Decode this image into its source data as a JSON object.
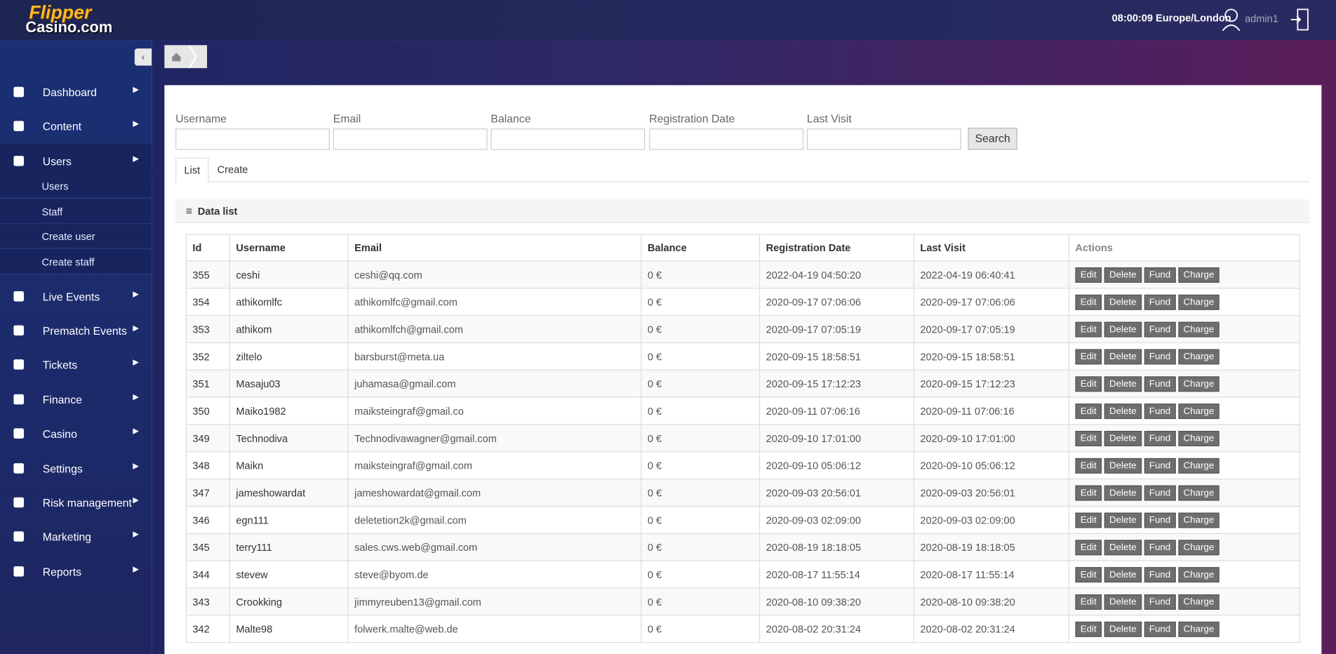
{
  "header": {
    "logo_top": "Flipper",
    "logo_bottom": "Casino.com",
    "time": "08:00:09 Europe/London",
    "user": "admin1"
  },
  "sidebar": {
    "menu": [
      "Dashboard",
      "Content",
      "Users",
      "Live Events",
      "Prematch Events",
      "Tickets",
      "Finance",
      "Casino",
      "Settings",
      "Risk management",
      "Marketing",
      "Reports"
    ],
    "submenu": [
      "Users",
      "Staff",
      "Create user",
      "Create staff"
    ]
  },
  "filters": {
    "labels": [
      "Username",
      "Email",
      "Balance",
      "Registration Date",
      "Last Visit"
    ],
    "button": "Search"
  },
  "tabs": [
    "List",
    "Create"
  ],
  "panel_title": "Data list",
  "table": {
    "columns": [
      "Id",
      "Username",
      "Email",
      "Balance",
      "Registration Date",
      "Last Visit",
      "Actions"
    ],
    "actions": [
      "Edit",
      "Delete",
      "Fund",
      "Charge"
    ],
    "rows": [
      [
        "355",
        "ceshi",
        "ceshi@qq.com",
        "0 €",
        "2022-04-19 04:50:20",
        "2022-04-19 06:40:41"
      ],
      [
        "354",
        "athikomlfc",
        "athikomlfc@gmail.com",
        "0 €",
        "2020-09-17 07:06:06",
        "2020-09-17 07:06:06"
      ],
      [
        "353",
        "athikom",
        "athikomlfch@gmail.com",
        "0 €",
        "2020-09-17 07:05:19",
        "2020-09-17 07:05:19"
      ],
      [
        "352",
        "ziltelo",
        "barsburst@meta.ua",
        "0 €",
        "2020-09-15 18:58:51",
        "2020-09-15 18:58:51"
      ],
      [
        "351",
        "Masaju03",
        "juhamasa@gmail.com",
        "0 €",
        "2020-09-15 17:12:23",
        "2020-09-15 17:12:23"
      ],
      [
        "350",
        "Maiko1982",
        "maiksteingraf@gmail.co",
        "0 €",
        "2020-09-11 07:06:16",
        "2020-09-11 07:06:16"
      ],
      [
        "349",
        "Technodiva",
        "Technodivawagner@gmail.com",
        "0 €",
        "2020-09-10 17:01:00",
        "2020-09-10 17:01:00"
      ],
      [
        "348",
        "Maikn",
        "maiksteingraf@gmail.com",
        "0 €",
        "2020-09-10 05:06:12",
        "2020-09-10 05:06:12"
      ],
      [
        "347",
        "jameshowardat",
        "jameshowardat@gmail.com",
        "0 €",
        "2020-09-03 20:56:01",
        "2020-09-03 20:56:01"
      ],
      [
        "346",
        "egn111",
        "deletetion2k@gmail.com",
        "0 €",
        "2020-09-03 02:09:00",
        "2020-09-03 02:09:00"
      ],
      [
        "345",
        "terry111",
        "sales.cws.web@gmail.com",
        "0 €",
        "2020-08-19 18:18:05",
        "2020-08-19 18:18:05"
      ],
      [
        "344",
        "stevew",
        "steve@byom.de",
        "0 €",
        "2020-08-17 11:55:14",
        "2020-08-17 11:55:14"
      ],
      [
        "343",
        "Crookking",
        "jimmyreuben13@gmail.com",
        "0 €",
        "2020-08-10 09:38:20",
        "2020-08-10 09:38:20"
      ],
      [
        "342",
        "Malte98",
        "folwerk.malte@web.de",
        "0 €",
        "2020-08-02 20:31:24",
        "2020-08-02 20:31:24"
      ]
    ]
  }
}
